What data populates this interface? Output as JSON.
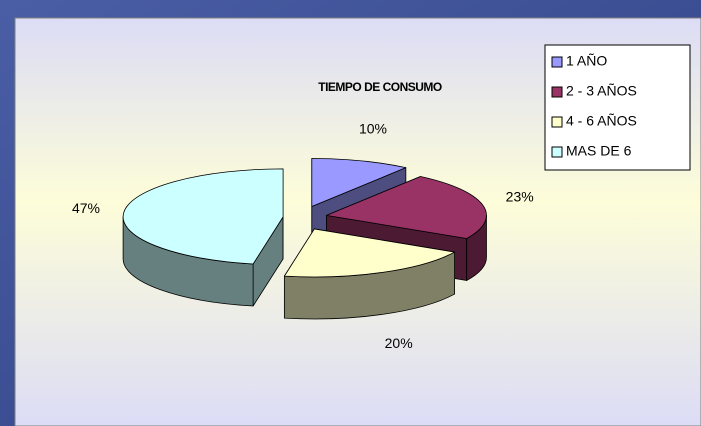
{
  "chart_data": {
    "type": "pie",
    "title": "TIEMPO DE CONSUMO",
    "categories": [
      "1 AÑO",
      "2 - 3 AÑOS",
      "4 - 6 AÑOS",
      "MAS DE 6"
    ],
    "values": [
      10,
      23,
      20,
      47
    ],
    "value_labels": [
      "10%",
      "23%",
      "20%",
      "47%"
    ],
    "colors": [
      "#9999ff",
      "#993366",
      "#ffffcc",
      "#ccffff"
    ],
    "legend": "top-right"
  }
}
